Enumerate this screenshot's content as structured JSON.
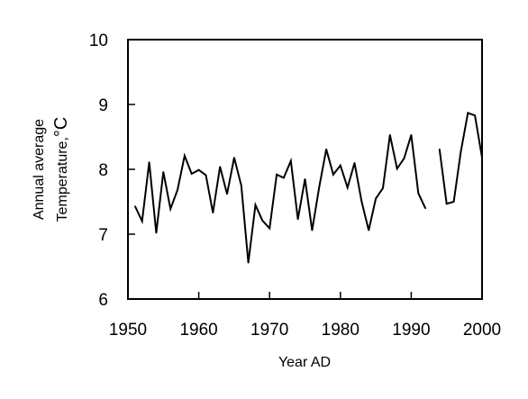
{
  "chart_data": {
    "type": "line",
    "title": "",
    "xlabel": "Year AD",
    "ylabel_line1": "Annual average",
    "ylabel_line2_prefix": "Temperature,",
    "ylabel_unit": "°C",
    "xlim": [
      1950,
      2000
    ],
    "ylim": [
      6,
      10
    ],
    "x_ticks": [
      1950,
      1960,
      1970,
      1980,
      1990,
      2000
    ],
    "y_ticks": [
      6,
      7,
      8,
      9,
      10
    ],
    "grid": false,
    "series": [
      {
        "segments": [
          {
            "x": [
              1951,
              1952,
              1953,
              1954,
              1955,
              1956,
              1957,
              1958,
              1959,
              1960,
              1961,
              1962,
              1963,
              1964,
              1965,
              1966,
              1967,
              1968,
              1969,
              1970,
              1971,
              1972,
              1973,
              1974,
              1975,
              1976,
              1977,
              1978,
              1979,
              1980,
              1981,
              1982,
              1983,
              1984,
              1985,
              1986,
              1987,
              1988,
              1989,
              1990,
              1991,
              1992
            ],
            "y": [
              7.43,
              7.2,
              8.11,
              7.02,
              7.96,
              7.39,
              7.68,
              8.21,
              7.93,
              7.99,
              7.91,
              7.33,
              8.04,
              7.62,
              8.18,
              7.75,
              6.56,
              7.45,
              7.21,
              7.09,
              7.92,
              7.87,
              8.13,
              7.23,
              7.85,
              7.06,
              7.72,
              8.31,
              7.92,
              8.06,
              7.72,
              8.1,
              7.5,
              7.06,
              7.55,
              7.71,
              8.53,
              8.01,
              8.17,
              8.53,
              7.63,
              7.4
            ]
          },
          {
            "x": [
              1994,
              1995,
              1996,
              1997,
              1998,
              1999,
              2000
            ],
            "y": [
              8.31,
              7.47,
              7.5,
              8.27,
              8.87,
              8.83,
              8.18
            ]
          }
        ]
      }
    ]
  }
}
